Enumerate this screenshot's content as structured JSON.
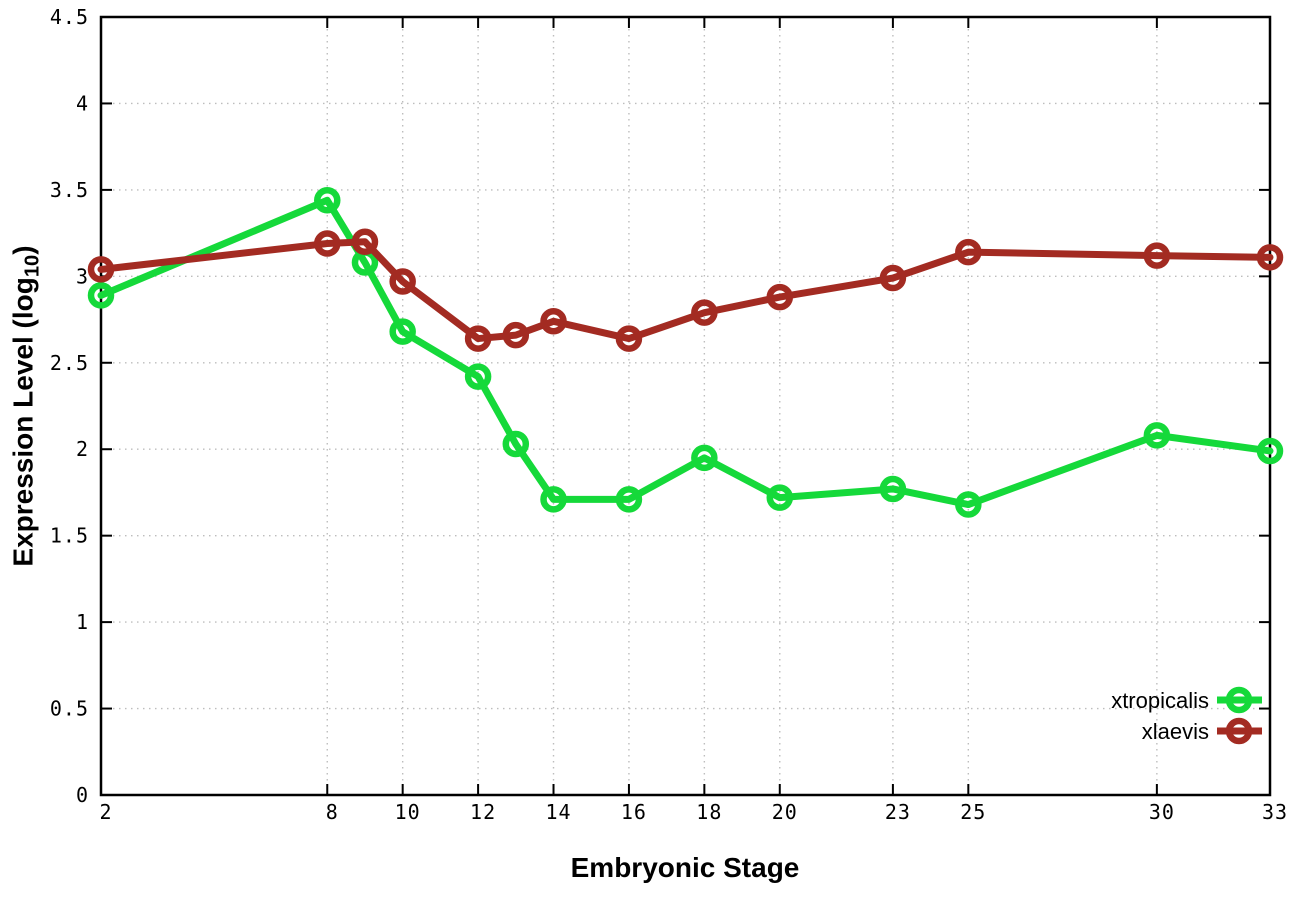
{
  "chart_data": {
    "type": "line",
    "title": "",
    "xlabel": "Embryonic Stage",
    "ylabel_prefix": "Expression Level (log",
    "ylabel_sub": "10",
    "ylabel_suffix": ")",
    "x": [
      2,
      8,
      9,
      10,
      12,
      13,
      14,
      16,
      18,
      20,
      23,
      25,
      30,
      33
    ],
    "series": [
      {
        "name": "xtropicalis",
        "color": "#15d93a",
        "values": [
          2.89,
          3.44,
          3.08,
          2.68,
          2.42,
          2.03,
          1.71,
          1.71,
          1.95,
          1.72,
          1.77,
          1.68,
          2.08,
          1.99
        ]
      },
      {
        "name": "xlaevis",
        "color": "#a32b22",
        "values": [
          3.04,
          3.19,
          3.2,
          2.97,
          2.64,
          2.66,
          2.74,
          2.64,
          2.79,
          2.88,
          2.99,
          3.14,
          3.12,
          3.11
        ]
      }
    ],
    "xlim": [
      2,
      33
    ],
    "ylim": [
      0,
      4.5
    ],
    "xticks": [
      2,
      8,
      10,
      12,
      14,
      16,
      18,
      20,
      23,
      25,
      30,
      33
    ],
    "xtick_labels": [
      "2",
      "8",
      "10",
      "12",
      "14",
      "16",
      "18",
      "20",
      "23",
      "25",
      "30",
      "33"
    ],
    "yticks": [
      0,
      0.5,
      1,
      1.5,
      2,
      2.5,
      3,
      3.5,
      4,
      4.5
    ],
    "ytick_labels": [
      "0",
      "0.5",
      "1",
      "1.5",
      "2",
      "2.5",
      "3",
      "3.5",
      "4",
      "4.5"
    ],
    "grid": true,
    "legend_position": "bottom-right",
    "marker": "open-circle",
    "grid_color": "#bdbdbd",
    "border_color": "#000000"
  }
}
